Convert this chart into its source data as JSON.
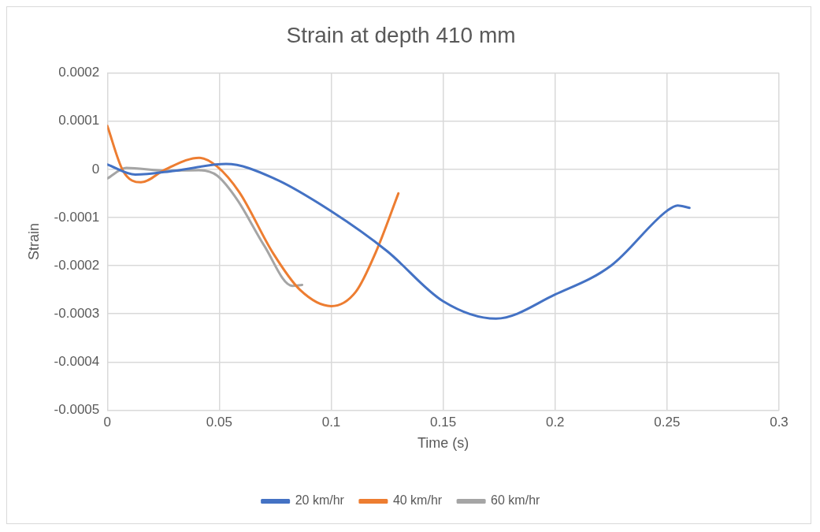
{
  "chart_data": {
    "type": "line",
    "title": "Strain at depth 410 mm",
    "xlabel": "Time (s)",
    "ylabel": "Strain",
    "xlim": [
      0,
      0.3
    ],
    "xticks": [
      0,
      0.05,
      0.1,
      0.15,
      0.2,
      0.25,
      0.3
    ],
    "ylim": [
      -0.0005,
      0.0002
    ],
    "yticks": [
      0.0002,
      0.0001,
      0,
      -0.0001,
      -0.0002,
      -0.0003,
      -0.0004,
      -0.0005
    ],
    "grid": true,
    "legend": "bottom",
    "marker": "none",
    "line_style": "solid",
    "series": [
      {
        "name": "20 km/hr",
        "color": "#4472c4",
        "x": [
          0,
          0.0125,
          0.03,
          0.053,
          0.075,
          0.1,
          0.125,
          0.15,
          0.1736,
          0.2,
          0.225,
          0.25,
          0.2547,
          0.26
        ],
        "values": [
          1e-05,
          -1.1e-05,
          -3e-06,
          1.1e-05,
          -2e-05,
          -8.7e-05,
          -0.00017,
          -0.000274,
          -0.00031,
          -0.00026,
          -0.0002,
          -8.6e-05,
          -7.5e-05,
          -8e-05
        ]
      },
      {
        "name": "40 km/hr",
        "color": "#ed7d31",
        "x": [
          0,
          0.007,
          0.015,
          0.026,
          0.041,
          0.049,
          0.059,
          0.074,
          0.086,
          0.1,
          0.111,
          0.12,
          0.13
        ],
        "values": [
          9e-05,
          -3e-06,
          -2.7e-05,
          0,
          2.4e-05,
          6e-06,
          -4.8e-05,
          -0.000174,
          -0.00025,
          -0.000284,
          -0.000254,
          -0.000171,
          -5e-05
        ]
      },
      {
        "name": "60 km/hr",
        "color": "#a5a5a5",
        "x": [
          0,
          0.0085,
          0.026,
          0.041,
          0.049,
          0.058,
          0.07,
          0.0826,
          0.087
        ],
        "values": [
          -1.9e-05,
          3e-06,
          -3e-06,
          -2e-06,
          -1.3e-05,
          -6.3e-05,
          -0.000158,
          -0.000242,
          -0.00024
        ]
      }
    ]
  }
}
